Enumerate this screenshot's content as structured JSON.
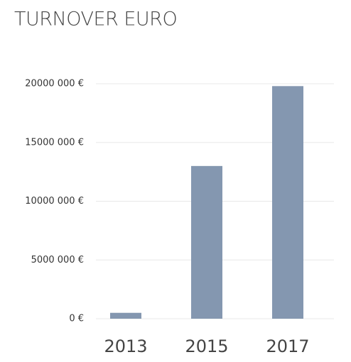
{
  "chart_data": {
    "type": "bar",
    "title": "TURNOVER EURO",
    "categories": [
      "2013",
      "2015",
      "2017"
    ],
    "values": [
      500000,
      13000000,
      19800000
    ],
    "color": "#8497b0",
    "ylim": [
      0,
      20000000
    ],
    "yticks": [
      {
        "value": 0,
        "label": "0 €"
      },
      {
        "value": 5000000,
        "label": "5000 000 €"
      },
      {
        "value": 10000000,
        "label": "10000 000 €"
      },
      {
        "value": 15000000,
        "label": "15000 000 €"
      },
      {
        "value": 20000000,
        "label": "20000 000 €"
      }
    ],
    "grid": true
  }
}
